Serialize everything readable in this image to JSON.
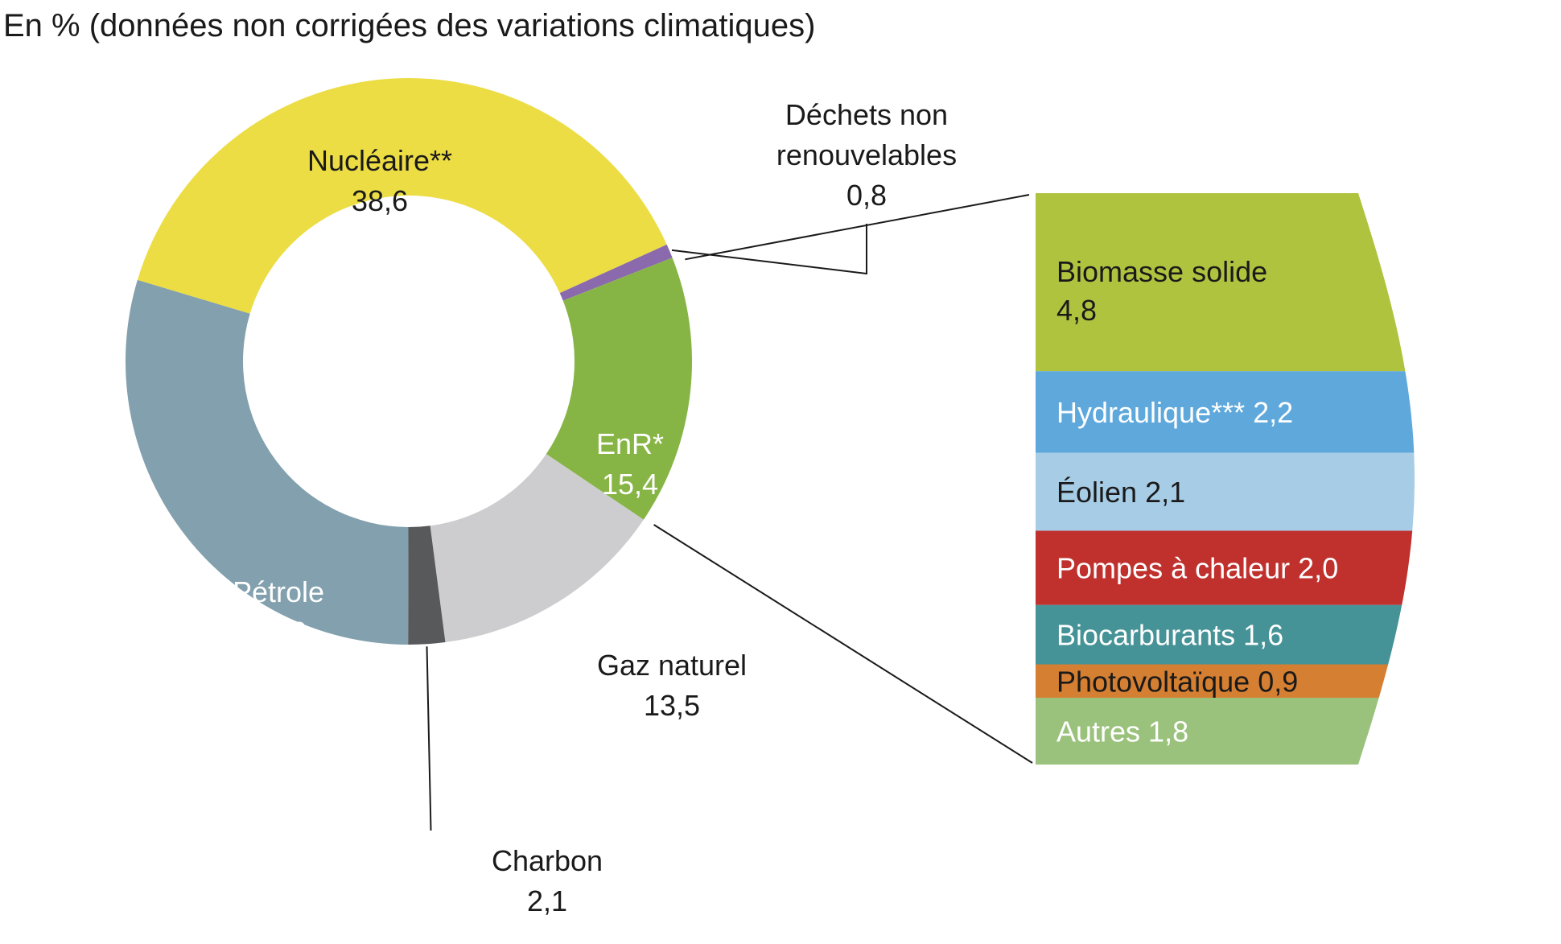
{
  "chart_data": {
    "type": "pie",
    "subtitle": "En % (données non corrigées des variations climatiques)",
    "donut": {
      "slices": [
        {
          "label": "Nucléaire**",
          "value": 38.6,
          "value_text": "38,6",
          "color": "#ecdd45",
          "label_color": "#1a1a1a"
        },
        {
          "label": "Déchets non renouvelables",
          "label_lines": [
            "Déchets non",
            "renouvelables"
          ],
          "value": 0.8,
          "value_text": "0,8",
          "color": "#8a6aac",
          "label_color": "#1a1a1a"
        },
        {
          "label": "EnR*",
          "value": 15.4,
          "value_text": "15,4",
          "color": "#87b545",
          "label_color": "#ffffff"
        },
        {
          "label": "Gaz naturel",
          "value": 13.5,
          "value_text": "13,5",
          "color": "#cdcdcf",
          "label_color": "#1a1a1a"
        },
        {
          "label": "Charbon",
          "value": 2.1,
          "value_text": "2,1",
          "color": "#58595b",
          "label_color": "#1a1a1a"
        },
        {
          "label": "Pétrole",
          "value": 29.6,
          "value_text": "29,6",
          "color": "#82a0ad",
          "label_color": "#ffffff"
        }
      ]
    },
    "breakdown": {
      "parent": "EnR*",
      "items": [
        {
          "label": "Biomasse solide",
          "value": 4.8,
          "value_text": "4,8",
          "color": "#b0c33f",
          "label_color": "#1a1a1a",
          "text": "Biomasse solide"
        },
        {
          "label": "Hydraulique***",
          "value": 2.2,
          "value_text": "2,2",
          "color": "#5ea8dc",
          "label_color": "#ffffff",
          "text": "Hydraulique*** 2,2"
        },
        {
          "label": "Éolien",
          "value": 2.1,
          "value_text": "2,1",
          "color": "#a7cde6",
          "label_color": "#1a1a1a",
          "text": "Éolien 2,1"
        },
        {
          "label": "Pompes à chaleur",
          "value": 2.0,
          "value_text": "2,0",
          "color": "#c0312e",
          "label_color": "#ffffff",
          "text": "Pompes à chaleur 2,0"
        },
        {
          "label": "Biocarburants",
          "value": 1.6,
          "value_text": "1,6",
          "color": "#459297",
          "label_color": "#ffffff",
          "text": "Biocarburants 1,6"
        },
        {
          "label": "Photovoltaïque",
          "value": 0.9,
          "value_text": "0,9",
          "color": "#d47f32",
          "label_color": "#1a1a1a",
          "text": "Photovoltaïque 0,9"
        },
        {
          "label": "Autres",
          "value": 1.8,
          "value_text": "1,8",
          "color": "#9ac27c",
          "label_color": "#ffffff",
          "text": "Autres 1,8"
        }
      ]
    }
  }
}
